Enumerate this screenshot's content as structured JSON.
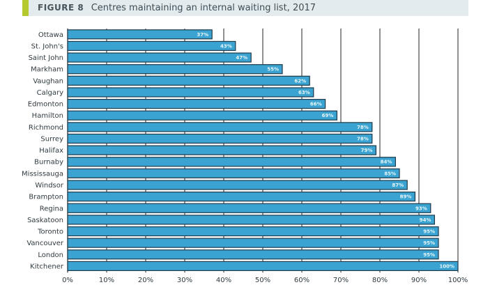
{
  "header": {
    "figure_label": "FIGURE 8",
    "title_text": "Centres maintaining an internal waiting list, 2017"
  },
  "colors": {
    "bar": "#3aa3d1",
    "bar_border": "#1f3a4a",
    "accent": "#b5c92f",
    "header_bg": "#e3ebee"
  },
  "chart_data": {
    "type": "bar",
    "orientation": "horizontal",
    "title": "Centres maintaining an internal waiting list, 2017",
    "xlabel": "",
    "ylabel": "",
    "xlim": [
      0,
      100
    ],
    "x_ticks": [
      "0%",
      "10%",
      "20%",
      "30%",
      "40%",
      "50%",
      "60%",
      "70%",
      "80%",
      "90%",
      "100%"
    ],
    "grid": true,
    "categories": [
      "Ottawa",
      "St. John's",
      "Saint John",
      "Markham",
      "Vaughan",
      "Calgary",
      "Edmonton",
      "Hamilton",
      "Richmond",
      "Surrey",
      "Halifax",
      "Burnaby",
      "Mississauga",
      "Windsor",
      "Brampton",
      "Regina",
      "Saskatoon",
      "Toronto",
      "Vancouver",
      "London",
      "Kitchener"
    ],
    "values": [
      37,
      43,
      47,
      55,
      62,
      63,
      66,
      69,
      78,
      78,
      79,
      84,
      85,
      87,
      89,
      93,
      94,
      95,
      95,
      95,
      100
    ],
    "value_labels": [
      "37%",
      "43%",
      "47%",
      "55%",
      "62%",
      "63%",
      "66%",
      "69%",
      "78%",
      "78%",
      "79%",
      "84%",
      "85%",
      "87%",
      "89%",
      "93%",
      "94%",
      "95%",
      "95%",
      "95%",
      "100%"
    ]
  }
}
